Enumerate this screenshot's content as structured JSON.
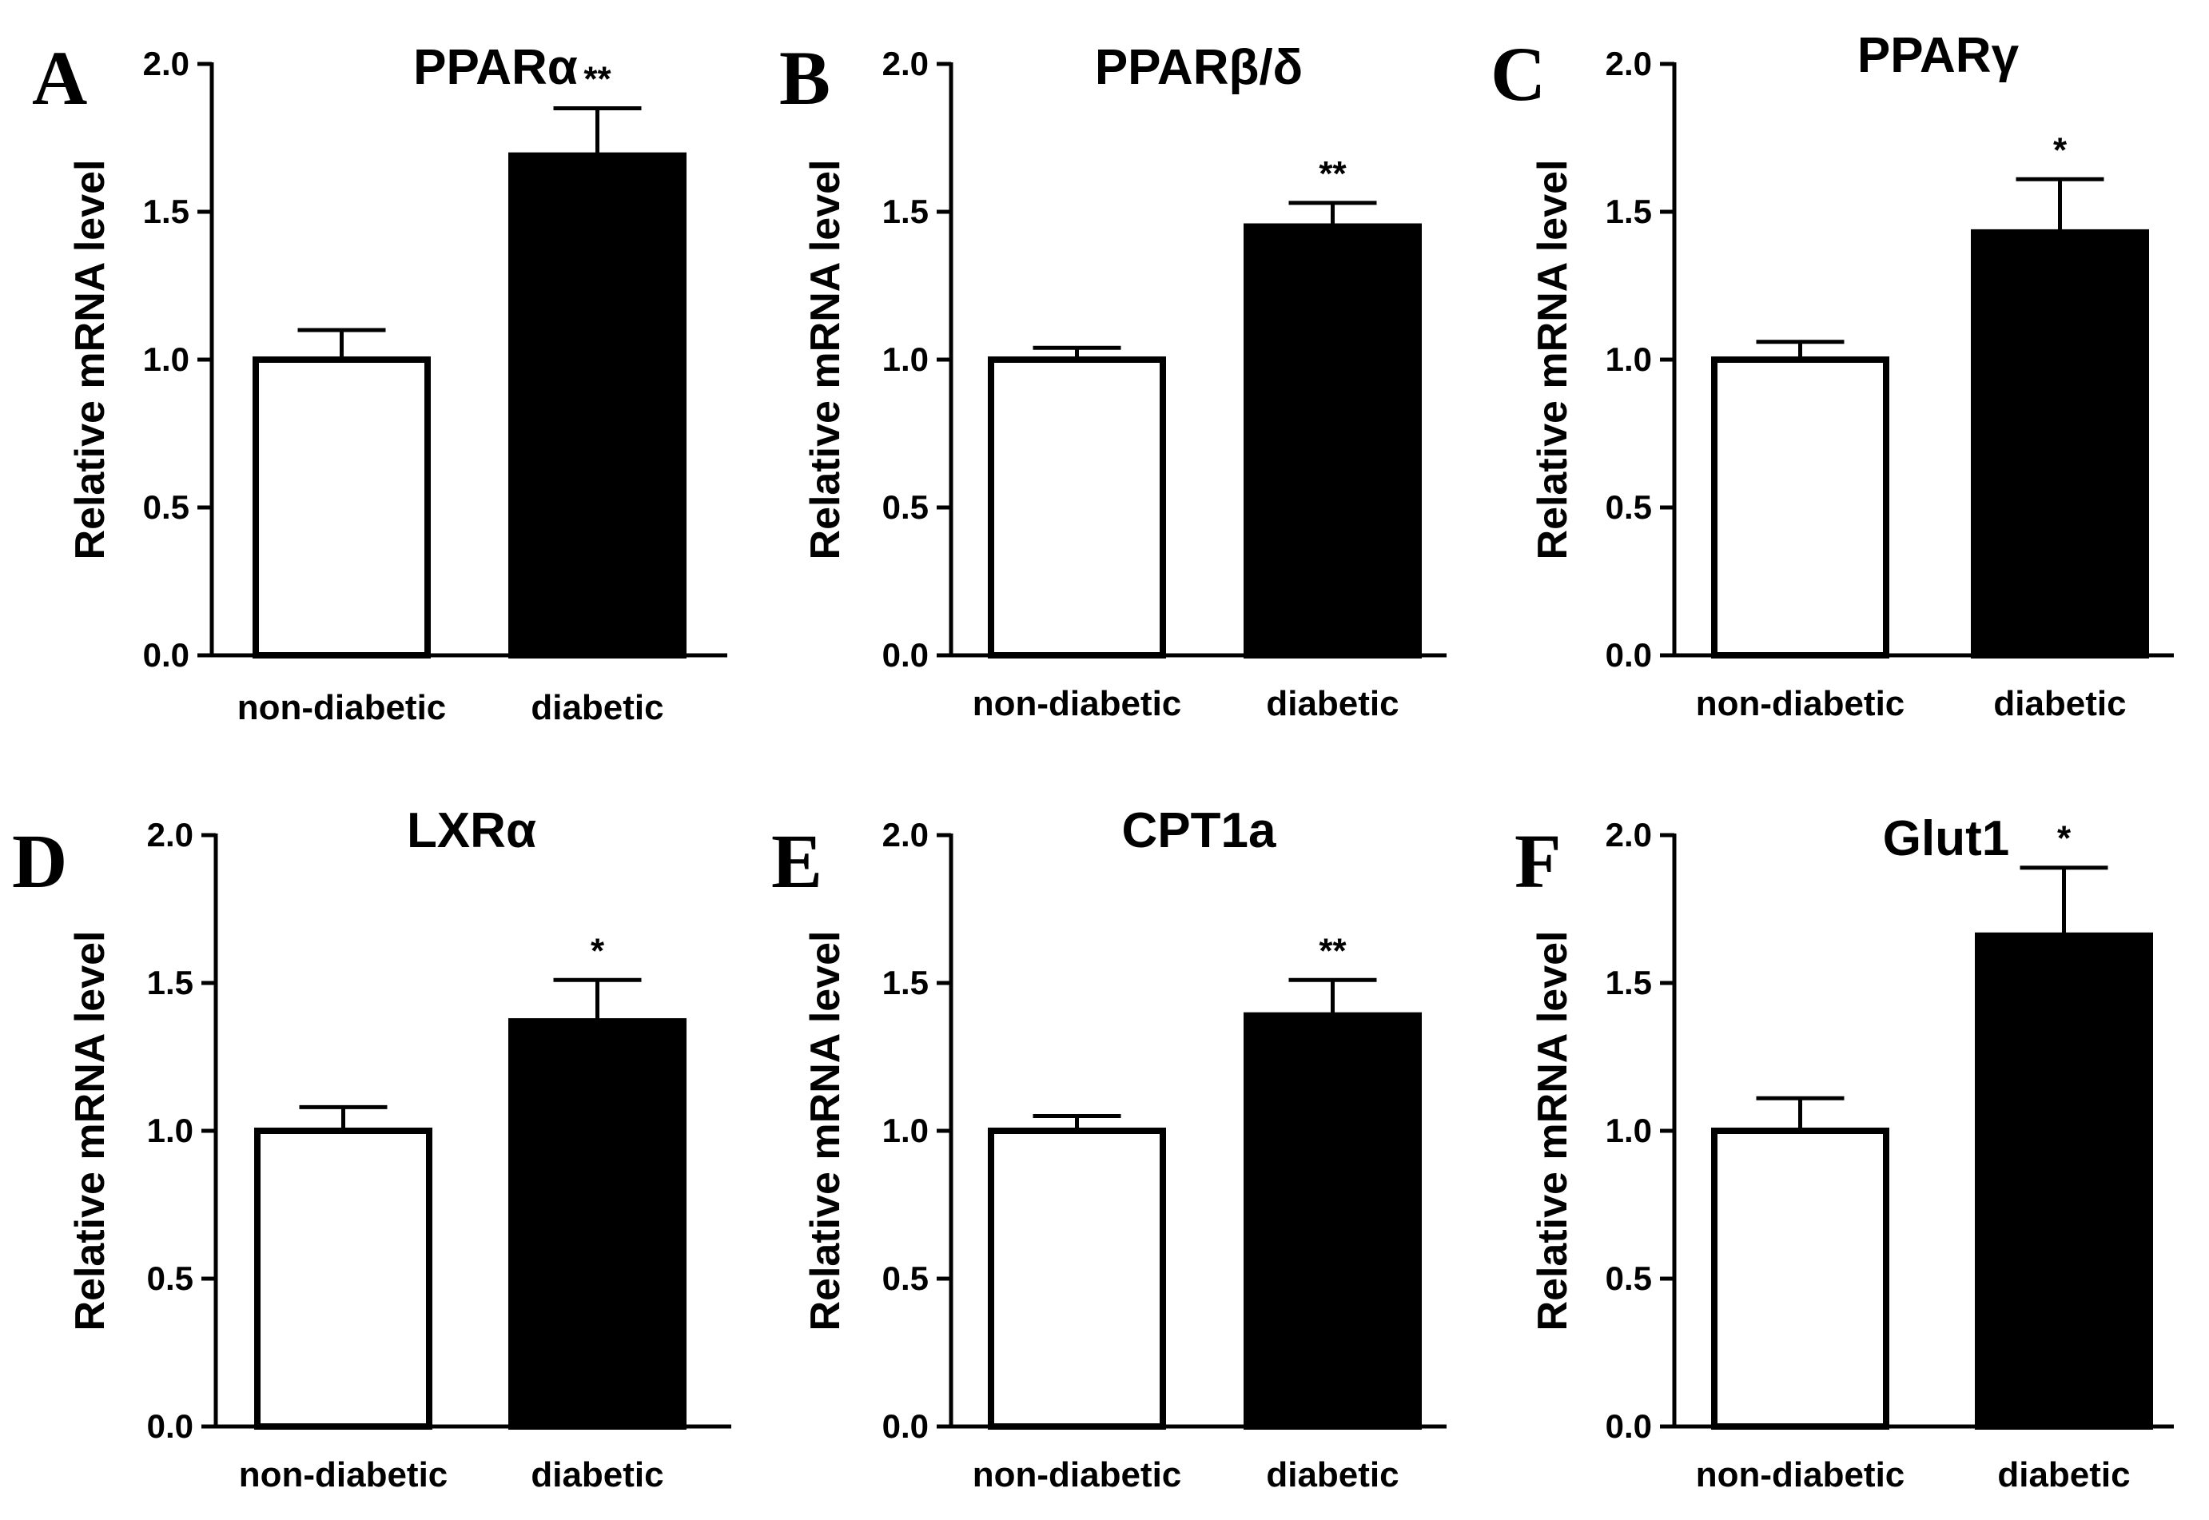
{
  "chart_data": [
    {
      "panel": "A",
      "type": "bar",
      "title": "PPARα",
      "ylabel": "Relative mRNA level",
      "ylim": [
        0,
        2.0
      ],
      "yticks": [
        "0.0",
        "0.5",
        "1.0",
        "1.5",
        "2.0"
      ],
      "categories": [
        "non-diabetic",
        "diabetic"
      ],
      "values": [
        1.0,
        1.69
      ],
      "errors": [
        0.1,
        0.16
      ],
      "colors": [
        "#ffffff",
        "#000000"
      ],
      "significance": [
        "",
        "**"
      ]
    },
    {
      "panel": "B",
      "type": "bar",
      "title": "PPARβ/δ",
      "ylabel": "Relative mRNA level",
      "ylim": [
        0,
        2.0
      ],
      "yticks": [
        "0.0",
        "0.5",
        "1.0",
        "1.5",
        "2.0"
      ],
      "categories": [
        "non-diabetic",
        "diabetic"
      ],
      "values": [
        1.0,
        1.45
      ],
      "errors": [
        0.04,
        0.08
      ],
      "colors": [
        "#ffffff",
        "#000000"
      ],
      "significance": [
        "",
        "**"
      ]
    },
    {
      "panel": "C",
      "type": "bar",
      "title": "PPARγ",
      "ylabel": "Relative mRNA level",
      "ylim": [
        0,
        2.0
      ],
      "yticks": [
        "0.0",
        "0.5",
        "1.0",
        "1.5",
        "2.0"
      ],
      "categories": [
        "non-diabetic",
        "diabetic"
      ],
      "values": [
        1.0,
        1.43
      ],
      "errors": [
        0.06,
        0.18
      ],
      "colors": [
        "#ffffff",
        "#000000"
      ],
      "significance": [
        "",
        "*"
      ]
    },
    {
      "panel": "D",
      "type": "bar",
      "title": "LXRα",
      "ylabel": "Relative mRNA level",
      "ylim": [
        0,
        2.0
      ],
      "yticks": [
        "0.0",
        "0.5",
        "1.0",
        "1.5",
        "2.0"
      ],
      "categories": [
        "non-diabetic",
        "diabetic"
      ],
      "values": [
        1.0,
        1.37
      ],
      "errors": [
        0.08,
        0.14
      ],
      "colors": [
        "#ffffff",
        "#000000"
      ],
      "significance": [
        "",
        "*"
      ]
    },
    {
      "panel": "E",
      "type": "bar",
      "title": "CPT1a",
      "ylabel": "Relative mRNA level",
      "ylim": [
        0,
        2.0
      ],
      "yticks": [
        "0.0",
        "0.5",
        "1.0",
        "1.5",
        "2.0"
      ],
      "categories": [
        "non-diabetic",
        "diabetic"
      ],
      "values": [
        1.0,
        1.39
      ],
      "errors": [
        0.05,
        0.12
      ],
      "colors": [
        "#ffffff",
        "#000000"
      ],
      "significance": [
        "",
        "**"
      ]
    },
    {
      "panel": "F",
      "type": "bar",
      "title": "Glut1",
      "ylabel": "Relative mRNA level",
      "ylim": [
        0,
        2.0
      ],
      "yticks": [
        "0.0",
        "0.5",
        "1.0",
        "1.5",
        "2.0"
      ],
      "categories": [
        "non-diabetic",
        "diabetic"
      ],
      "values": [
        1.0,
        1.66
      ],
      "errors": [
        0.11,
        0.23
      ],
      "colors": [
        "#ffffff",
        "#000000"
      ],
      "significance": [
        "",
        "*"
      ]
    }
  ]
}
